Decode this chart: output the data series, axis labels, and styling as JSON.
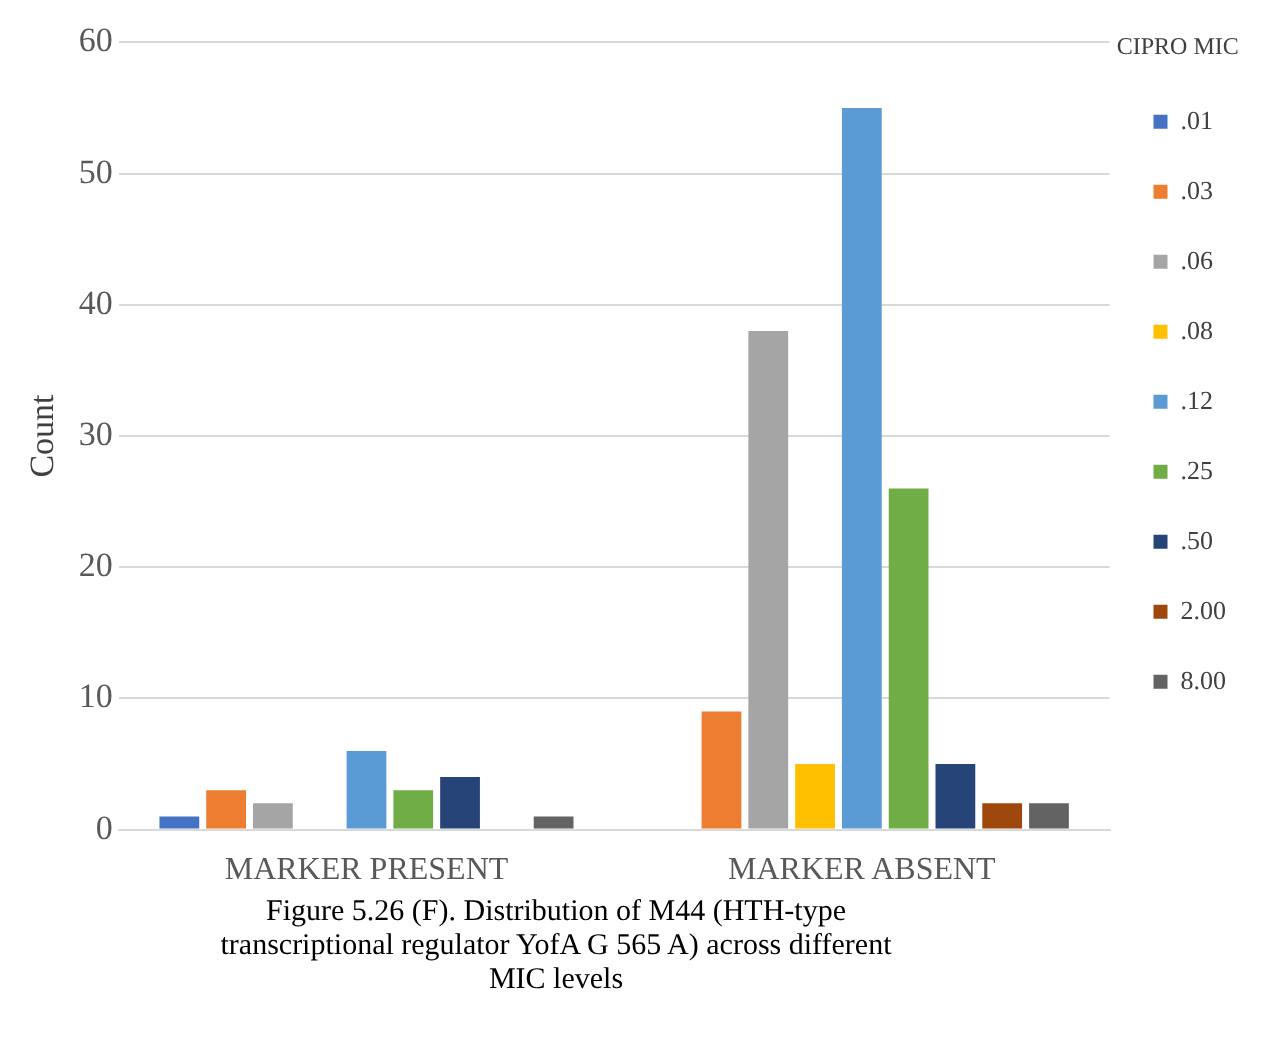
{
  "chart_data": {
    "type": "bar",
    "ylabel": "Count",
    "legend_title": "CIPRO MIC",
    "categories": [
      "MARKER PRESENT",
      "MARKER ABSENT"
    ],
    "series": [
      {
        "name": ".01",
        "color": "#4472c4",
        "values": [
          1,
          0
        ]
      },
      {
        "name": ".03",
        "color": "#ed7d31",
        "values": [
          3,
          9
        ]
      },
      {
        "name": ".06",
        "color": "#a5a5a5",
        "values": [
          2,
          38
        ]
      },
      {
        "name": ".08",
        "color": "#ffc000",
        "values": [
          0,
          5
        ]
      },
      {
        "name": ".12",
        "color": "#5b9bd5",
        "values": [
          6,
          55
        ]
      },
      {
        "name": ".25",
        "color": "#70ad47",
        "values": [
          3,
          26
        ]
      },
      {
        "name": ".50",
        "color": "#264478",
        "values": [
          4,
          5
        ]
      },
      {
        "name": "2.00",
        "color": "#9e480e",
        "values": [
          0,
          2
        ]
      },
      {
        "name": "8.00",
        "color": "#636363",
        "values": [
          1,
          2
        ]
      }
    ],
    "ylim": [
      0,
      60
    ],
    "yticks": [
      0,
      10,
      20,
      30,
      40,
      50,
      60
    ],
    "grid": "y",
    "legend": "right",
    "annotations": [
      "Figure 5.26 (F). Distribution of M44 (HTH-type transcriptional regulator YofA G 565 A) across different MIC levels"
    ]
  }
}
